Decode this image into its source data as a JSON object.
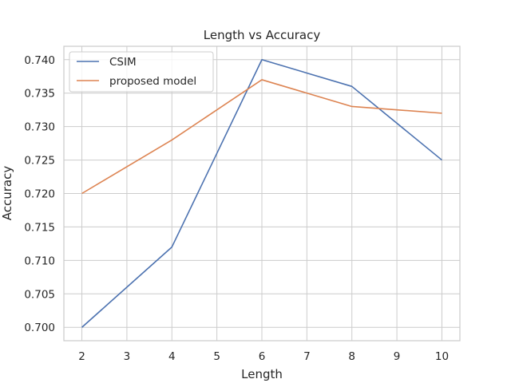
{
  "chart_data": {
    "type": "line",
    "title": "Length vs Accuracy",
    "xlabel": "Length",
    "ylabel": "Accuracy",
    "xlim": [
      1.6,
      10.4
    ],
    "ylim": [
      0.698,
      0.742
    ],
    "xticks": [
      2,
      3,
      4,
      5,
      6,
      7,
      8,
      9,
      10
    ],
    "yticks": [
      0.7,
      0.705,
      0.71,
      0.715,
      0.72,
      0.725,
      0.73,
      0.735,
      0.74
    ],
    "ytick_labels": [
      "0.700",
      "0.705",
      "0.710",
      "0.715",
      "0.720",
      "0.725",
      "0.730",
      "0.735",
      "0.740"
    ],
    "grid": true,
    "legend_position": "upper-left",
    "x": [
      2,
      4,
      6,
      8,
      10
    ],
    "series": [
      {
        "name": "CSIM",
        "color": "#4c72b0",
        "values": [
          0.7,
          0.712,
          0.74,
          0.736,
          0.725
        ]
      },
      {
        "name": "proposed model",
        "color": "#dd8452",
        "values": [
          0.72,
          0.728,
          0.737,
          0.733,
          0.732
        ]
      }
    ]
  }
}
